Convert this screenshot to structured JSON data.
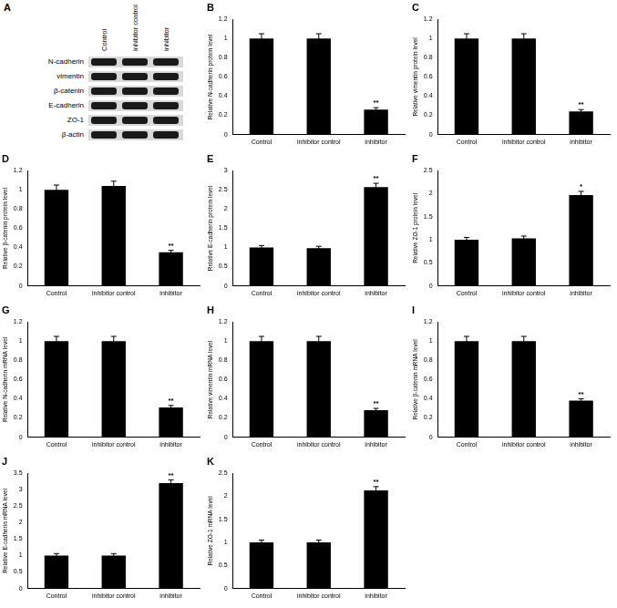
{
  "blot": {
    "title": "A",
    "lanes": [
      "Control",
      "inhibitor control",
      "inhibitor"
    ],
    "proteins": [
      "N-cadherin",
      "vimentin",
      "β-catenin",
      "E-cadherin",
      "ZO-1",
      "β-actin"
    ]
  },
  "chart_data": [
    {
      "type": "bar",
      "title": "B",
      "ylabel": "Relative N-cadherin protein level",
      "categories": [
        "Control",
        "inhibitor control",
        "inhibitor"
      ],
      "values": [
        1,
        1,
        0.26
      ],
      "errors": [
        0.05,
        0.05,
        0.02
      ],
      "annotations": [
        null,
        null,
        "**"
      ],
      "color": "#000000",
      "ylim": [
        0,
        1.2
      ],
      "yticks": [
        0,
        0.2,
        0.4,
        0.6,
        0.8,
        1,
        1.2
      ],
      "grid": false
    },
    {
      "type": "bar",
      "title": "C",
      "ylabel": "Relative vimentin protein level",
      "categories": [
        "Control",
        "inhibitor control",
        "inhibitor"
      ],
      "values": [
        1,
        1,
        0.24
      ],
      "errors": [
        0.05,
        0.05,
        0.02
      ],
      "annotations": [
        null,
        null,
        "**"
      ],
      "color": "#000000",
      "ylim": [
        0,
        1.2
      ],
      "yticks": [
        0,
        0.2,
        0.4,
        0.6,
        0.8,
        1,
        1.2
      ],
      "grid": false
    },
    {
      "type": "bar",
      "title": "D",
      "ylabel": "Relative β-catenin protein level",
      "categories": [
        "Control",
        "inhibitor control",
        "inhibitor"
      ],
      "values": [
        1,
        1.04,
        0.35
      ],
      "errors": [
        0.05,
        0.05,
        0.02
      ],
      "annotations": [
        null,
        null,
        "**"
      ],
      "color": "#000000",
      "ylim": [
        0,
        1.2
      ],
      "yticks": [
        0,
        0.2,
        0.4,
        0.6,
        0.8,
        1,
        1.2
      ],
      "grid": false
    },
    {
      "type": "bar",
      "title": "E",
      "ylabel": "Relative E-cadherin protein level",
      "categories": [
        "Control",
        "inhibitor control",
        "inhibitor"
      ],
      "values": [
        1,
        0.98,
        2.57
      ],
      "errors": [
        0.05,
        0.05,
        0.1
      ],
      "annotations": [
        null,
        null,
        "**"
      ],
      "color": "#000000",
      "ylim": [
        0,
        3
      ],
      "yticks": [
        0,
        0.5,
        1,
        1.5,
        2,
        2.5,
        3
      ],
      "grid": false
    },
    {
      "type": "bar",
      "title": "F",
      "ylabel": "Relative ZO-1 protein level",
      "categories": [
        "Control",
        "inhibitor control",
        "inhibitor"
      ],
      "values": [
        1,
        1.03,
        1.97
      ],
      "errors": [
        0.05,
        0.05,
        0.08
      ],
      "annotations": [
        null,
        null,
        "*"
      ],
      "color": "#000000",
      "ylim": [
        0,
        2.5
      ],
      "yticks": [
        0,
        0.5,
        1,
        1.5,
        2,
        2.5
      ],
      "grid": false
    },
    {
      "type": "bar",
      "title": "G",
      "ylabel": "Relative N-cadherin mRNA level",
      "categories": [
        "Control",
        "inhibitor control",
        "inhibitor"
      ],
      "values": [
        1,
        1,
        0.31
      ],
      "errors": [
        0.05,
        0.05,
        0.02
      ],
      "annotations": [
        null,
        null,
        "**"
      ],
      "color": "#000000",
      "ylim": [
        0,
        1.2
      ],
      "yticks": [
        0,
        0.2,
        0.4,
        0.6,
        0.8,
        1,
        1.2
      ],
      "grid": false
    },
    {
      "type": "bar",
      "title": "H",
      "ylabel": "Relative vimentin mRNA level",
      "categories": [
        "Control",
        "inhibitor control",
        "inhibitor"
      ],
      "values": [
        1,
        1,
        0.28
      ],
      "errors": [
        0.05,
        0.05,
        0.02
      ],
      "annotations": [
        null,
        null,
        "**"
      ],
      "color": "#000000",
      "ylim": [
        0,
        1.2
      ],
      "yticks": [
        0,
        0.2,
        0.4,
        0.6,
        0.8,
        1,
        1.2
      ],
      "grid": false
    },
    {
      "type": "bar",
      "title": "I",
      "ylabel": "Relative β-catenin mRNA level",
      "categories": [
        "Control",
        "inhibitor control",
        "inhibitor"
      ],
      "values": [
        1,
        1,
        0.38
      ],
      "errors": [
        0.05,
        0.05,
        0.02
      ],
      "annotations": [
        null,
        null,
        "**"
      ],
      "color": "#000000",
      "ylim": [
        0,
        1.2
      ],
      "yticks": [
        0,
        0.2,
        0.4,
        0.6,
        0.8,
        1,
        1.2
      ],
      "grid": false
    },
    {
      "type": "bar",
      "title": "J",
      "ylabel": "Relative E-cadherin mRNA level",
      "categories": [
        "Control",
        "inhibitor control",
        "inhibitor"
      ],
      "values": [
        1,
        1,
        3.2
      ],
      "errors": [
        0.06,
        0.06,
        0.1
      ],
      "annotations": [
        null,
        null,
        "**"
      ],
      "color": "#000000",
      "ylim": [
        0,
        3.5
      ],
      "yticks": [
        0,
        0.5,
        1,
        1.5,
        2,
        2.5,
        3,
        3.5
      ],
      "grid": false
    },
    {
      "type": "bar",
      "title": "K",
      "ylabel": "Relative ZO-1 mRNA level",
      "categories": [
        "Control",
        "inhibitor control",
        "inhibitor"
      ],
      "values": [
        1,
        1,
        2.13
      ],
      "errors": [
        0.05,
        0.05,
        0.08
      ],
      "annotations": [
        null,
        null,
        "**"
      ],
      "color": "#000000",
      "ylim": [
        0,
        2.5
      ],
      "yticks": [
        0,
        0.5,
        1,
        1.5,
        2,
        2.5
      ],
      "grid": false
    }
  ]
}
